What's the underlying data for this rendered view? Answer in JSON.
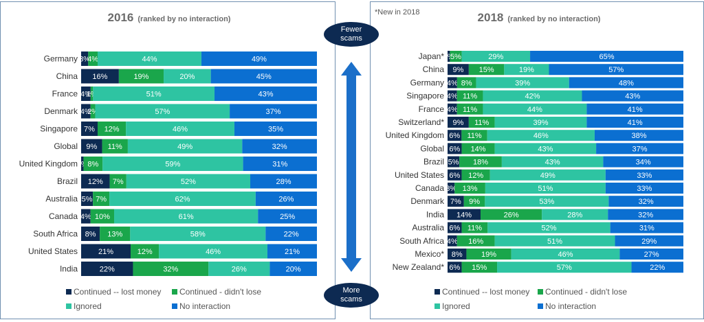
{
  "note": "*New in 2018",
  "fewer_scams": [
    "Fewer",
    "scams"
  ],
  "more_scams": [
    "More",
    "scams"
  ],
  "colors": {
    "lost": "#0d2a52",
    "didnt_lose": "#1aa64b",
    "ignored": "#2ec4a2",
    "no_interaction": "#0b6fd1",
    "arrow": "#1b6fc9",
    "ellipse": "#0d2a52"
  },
  "legend": [
    {
      "key": "lost",
      "label": "Continued -- lost money"
    },
    {
      "key": "didnt_lose",
      "label": "Continued - didn't lose"
    },
    {
      "key": "ignored",
      "label": "Ignored"
    },
    {
      "key": "no_interaction",
      "label": "No interaction"
    }
  ],
  "chart_data": [
    {
      "type": "bar",
      "orientation": "horizontal-stacked-100",
      "title": "2016",
      "subtitle": "(ranked by no interaction)",
      "categories": [
        "Germany",
        "China",
        "France",
        "Denmark",
        "Singapore",
        "Global",
        "United Kingdom",
        "Brazil",
        "Australia",
        "Canada",
        "South Africa",
        "United States",
        "India"
      ],
      "series": [
        {
          "name": "Continued -- lost money",
          "values": [
            3,
            16,
            4,
            4,
            7,
            9,
            1,
            12,
            5,
            4,
            8,
            21,
            22
          ],
          "labels": [
            "3%",
            "16%",
            "4%",
            "4%",
            "7%",
            "9%",
            "1%",
            "12%",
            "5%",
            "4%",
            "8%",
            "21%",
            "22%"
          ]
        },
        {
          "name": "Continued - didn't lose",
          "values": [
            4,
            19,
            1,
            2,
            12,
            11,
            8,
            7,
            7,
            10,
            13,
            12,
            32
          ],
          "labels": [
            "4%",
            "19%",
            "1%",
            "2%",
            "12%",
            "11%",
            "8%",
            "7%",
            "7%",
            "10%",
            "13%",
            "12%",
            "32%"
          ]
        },
        {
          "name": "Ignored",
          "values": [
            44,
            20,
            51,
            57,
            46,
            49,
            59,
            52,
            62,
            61,
            58,
            46,
            26
          ],
          "labels": [
            "44%",
            "20%",
            "51%",
            "57%",
            "46%",
            "49%",
            "59%",
            "52%",
            "62%",
            "61%",
            "58%",
            "46%",
            "26%"
          ]
        },
        {
          "name": "No interaction",
          "values": [
            49,
            45,
            43,
            37,
            35,
            32,
            31,
            28,
            26,
            25,
            22,
            21,
            20
          ],
          "labels": [
            "49%",
            "45%",
            "43%",
            "37%",
            "35%",
            "32%",
            "31%",
            "28%",
            "26%",
            "25%",
            "22%",
            "21%",
            "20%"
          ]
        }
      ]
    },
    {
      "type": "bar",
      "orientation": "horizontal-stacked-100",
      "title": "2018",
      "subtitle": "(ranked by no interaction)",
      "categories": [
        "Japan*",
        "China",
        "Germany",
        "Singapore",
        "France",
        "Switzerland*",
        "United Kingdom",
        "Global",
        "Brazil",
        "United States",
        "Canada",
        "Denmark",
        "India",
        "Australia",
        "South Africa",
        "Mexico*",
        "New Zealand*"
      ],
      "series": [
        {
          "name": "Continued -- lost money",
          "values": [
            1,
            9,
            4,
            4,
            4,
            9,
            6,
            6,
            5,
            6,
            3,
            7,
            14,
            6,
            4,
            8,
            6
          ],
          "labels": [
            "1%",
            "9%",
            "4%",
            "4%",
            "4%",
            "9%",
            "6%",
            "6%",
            "5%",
            "6%",
            "3%",
            "7%",
            "14%",
            "6%",
            "4%",
            "8%",
            "6%"
          ]
        },
        {
          "name": "Continued - didn't lose",
          "values": [
            5,
            15,
            8,
            11,
            11,
            11,
            11,
            14,
            18,
            12,
            13,
            9,
            26,
            11,
            16,
            19,
            15
          ],
          "labels": [
            "5%",
            "15%",
            "8%",
            "11%",
            "11%",
            "11%",
            "11%",
            "14%",
            "18%",
            "12%",
            "13%",
            "9%",
            "26%",
            "11%",
            "16%",
            "19%",
            "15%"
          ]
        },
        {
          "name": "Ignored",
          "values": [
            29,
            19,
            39,
            42,
            44,
            39,
            46,
            43,
            43,
            49,
            51,
            53,
            28,
            52,
            51,
            46,
            57
          ],
          "labels": [
            "29%",
            "19%",
            "39%",
            "42%",
            "44%",
            "39%",
            "46%",
            "43%",
            "43%",
            "49%",
            "51%",
            "53%",
            "28%",
            "52%",
            "51%",
            "46%",
            "57%"
          ]
        },
        {
          "name": "No interaction",
          "values": [
            65,
            57,
            48,
            43,
            41,
            41,
            38,
            37,
            34,
            33,
            33,
            32,
            32,
            31,
            29,
            27,
            22
          ],
          "labels": [
            "65%",
            "57%",
            "48%",
            "43%",
            "41%",
            "41%",
            "38%",
            "37%",
            "34%",
            "33%",
            "33%",
            "32%",
            "32%",
            "31%",
            "29%",
            "27%",
            "22%"
          ]
        }
      ]
    }
  ]
}
